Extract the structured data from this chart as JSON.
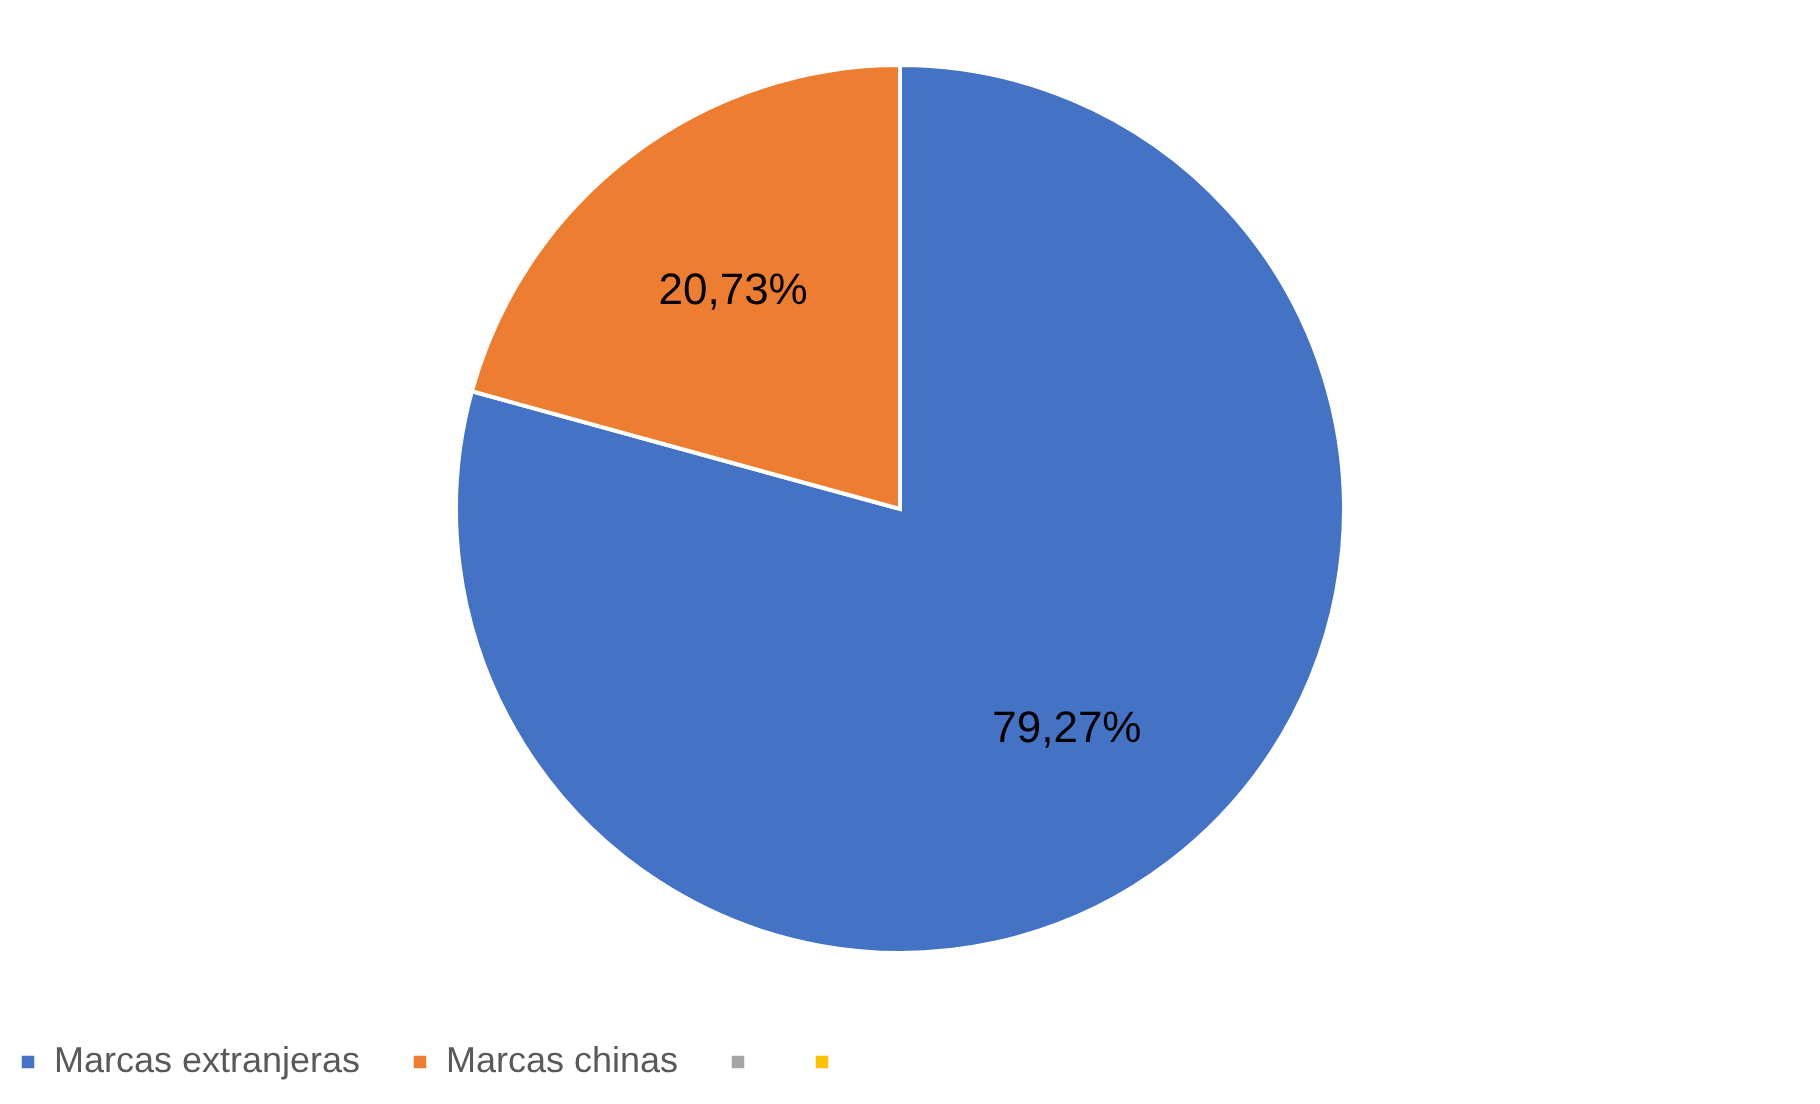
{
  "chart_data": {
    "type": "pie",
    "categories": [
      "Marcas extranjeras",
      "Marcas chinas",
      null,
      null
    ],
    "values": [
      79.27,
      20.73,
      0,
      0
    ],
    "colors": [
      "#4472c4",
      "#ed7d31",
      "#a5a5a5",
      "#ffc000"
    ],
    "value_labels": [
      "79,27%",
      "20,73%",
      null,
      null
    ],
    "legend": "bottom"
  }
}
